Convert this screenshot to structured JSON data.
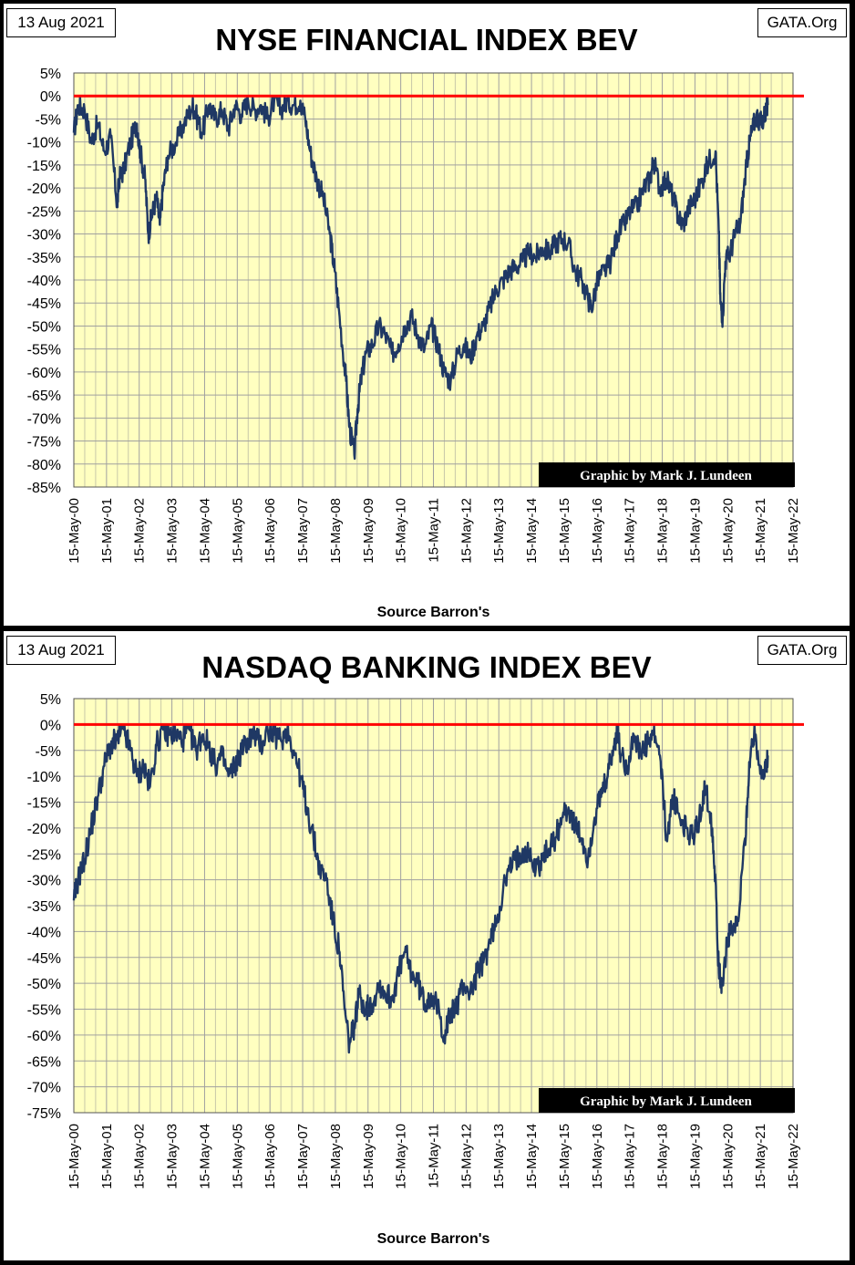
{
  "chart_data": [
    {
      "type": "line",
      "title": "NYSE FINANCIAL INDEX BEV",
      "date_stamp": "13 Aug 2021",
      "site_label": "GATA.Org",
      "credit": "Graphic by Mark J. Lundeen",
      "xlabel": "Source Barron's",
      "ylabel": "",
      "ylim": [
        -85,
        5
      ],
      "y_ticks": [
        "5%",
        "0%",
        "-5%",
        "-10%",
        "-15%",
        "-20%",
        "-25%",
        "-30%",
        "-35%",
        "-40%",
        "-45%",
        "-50%",
        "-55%",
        "-60%",
        "-65%",
        "-70%",
        "-75%",
        "-80%",
        "-85%"
      ],
      "x_ticks": [
        "15-May-00",
        "15-May-01",
        "15-May-02",
        "15-May-03",
        "15-May-04",
        "15-May-05",
        "15-May-06",
        "15-May-07",
        "15-May-08",
        "15-May-09",
        "15-May-10",
        "15-May-11",
        "15-May-12",
        "15-May-13",
        "15-May-14",
        "15-May-15",
        "15-May-16",
        "15-May-17",
        "15-May-18",
        "15-May-19",
        "15-May-20",
        "15-May-21",
        "15-May-22"
      ],
      "grid": true,
      "reference_line": 0,
      "colors": {
        "line": "#1f3864",
        "reference": "#ff0000",
        "plot_bg": "#ffffc0",
        "grid": "#a0a0a0"
      },
      "series": [
        {
          "x": [
            2000.37,
            2000.5,
            2000.7,
            2000.9,
            2001.1,
            2001.3,
            2001.5,
            2001.7,
            2001.75,
            2001.9,
            2002.1,
            2002.3,
            2002.4,
            2002.55,
            2002.65,
            2002.75,
            2002.9,
            2003.0,
            2003.1,
            2003.25,
            2003.5,
            2003.75,
            2004.0,
            2004.1,
            2004.3,
            2004.5,
            2004.7,
            2004.9,
            2005.1,
            2005.3,
            2005.5,
            2005.7,
            2005.9,
            2006.1,
            2006.3,
            2006.5,
            2006.7,
            2006.9,
            2007.1,
            2007.3,
            2007.45,
            2007.6,
            2007.8,
            2008.0,
            2008.2,
            2008.35,
            2008.5,
            2008.7,
            2008.8,
            2008.95,
            2009.05,
            2009.15,
            2009.3,
            2009.5,
            2009.7,
            2009.9,
            2010.1,
            2010.3,
            2010.5,
            2010.7,
            2010.9,
            2011.1,
            2011.3,
            2011.5,
            2011.7,
            2011.9,
            2012.1,
            2012.3,
            2012.5,
            2012.7,
            2012.9,
            2013.1,
            2013.3,
            2013.5,
            2013.7,
            2013.9,
            2014.1,
            2014.3,
            2014.5,
            2014.7,
            2014.9,
            2015.1,
            2015.3,
            2015.5,
            2015.7,
            2015.9,
            2016.1,
            2016.2,
            2016.4,
            2016.6,
            2016.8,
            2017.0,
            2017.2,
            2017.4,
            2017.6,
            2017.8,
            2018.0,
            2018.1,
            2018.3,
            2018.5,
            2018.7,
            2018.85,
            2019.0,
            2019.2,
            2019.4,
            2019.6,
            2019.8,
            2020.0,
            2020.1,
            2020.15,
            2020.22,
            2020.3,
            2020.45,
            2020.6,
            2020.75,
            2020.9,
            2021.0,
            2021.1,
            2021.25,
            2021.4,
            2021.5,
            2021.6
          ],
          "values": [
            -8,
            -2,
            -3,
            -10,
            -6,
            -12,
            -9,
            -24,
            -18,
            -16,
            -10,
            -6,
            -12,
            -18,
            -30,
            -26,
            -22,
            -28,
            -20,
            -13,
            -10,
            -6,
            -2,
            -4,
            -8,
            -2,
            -5,
            -3,
            -7,
            -2,
            -4,
            -1,
            -3,
            -2,
            -5,
            -1,
            -3,
            -1,
            -2,
            -1,
            -5,
            -12,
            -18,
            -22,
            -30,
            -38,
            -48,
            -62,
            -72,
            -78,
            -68,
            -62,
            -56,
            -54,
            -50,
            -52,
            -56,
            -54,
            -50,
            -48,
            -52,
            -55,
            -50,
            -54,
            -60,
            -62,
            -56,
            -54,
            -57,
            -52,
            -50,
            -46,
            -42,
            -40,
            -38,
            -37,
            -36,
            -34,
            -35,
            -33,
            -34,
            -32,
            -31,
            -32,
            -38,
            -40,
            -44,
            -46,
            -40,
            -38,
            -36,
            -30,
            -28,
            -25,
            -24,
            -20,
            -18,
            -14,
            -20,
            -18,
            -22,
            -26,
            -28,
            -24,
            -22,
            -18,
            -14,
            -12,
            -30,
            -45,
            -48,
            -36,
            -34,
            -30,
            -28,
            -18,
            -12,
            -8,
            -4,
            -6,
            -4,
            -2
          ]
        }
      ]
    },
    {
      "type": "line",
      "title": "NASDAQ BANKING INDEX BEV",
      "date_stamp": "13 Aug 2021",
      "site_label": "GATA.Org",
      "credit": "Graphic by Mark J. Lundeen",
      "xlabel": "Source Barron's",
      "ylabel": "",
      "ylim": [
        -75,
        5
      ],
      "y_ticks": [
        "5%",
        "0%",
        "-5%",
        "-10%",
        "-15%",
        "-20%",
        "-25%",
        "-30%",
        "-35%",
        "-40%",
        "-45%",
        "-50%",
        "-55%",
        "-60%",
        "-65%",
        "-70%",
        "-75%"
      ],
      "x_ticks": [
        "15-May-00",
        "15-May-01",
        "15-May-02",
        "15-May-03",
        "15-May-04",
        "15-May-05",
        "15-May-06",
        "15-May-07",
        "15-May-08",
        "15-May-09",
        "15-May-10",
        "15-May-11",
        "15-May-12",
        "15-May-13",
        "15-May-14",
        "15-May-15",
        "15-May-16",
        "15-May-17",
        "15-May-18",
        "15-May-19",
        "15-May-20",
        "15-May-21",
        "15-May-22"
      ],
      "grid": true,
      "reference_line": 0,
      "colors": {
        "line": "#1f3864",
        "reference": "#ff0000",
        "plot_bg": "#ffffc0",
        "grid": "#a0a0a0"
      },
      "series": [
        {
          "x": [
            2000.37,
            2000.5,
            2000.7,
            2000.9,
            2001.1,
            2001.3,
            2001.5,
            2001.7,
            2001.9,
            2002.1,
            2002.3,
            2002.5,
            2002.7,
            2002.9,
            2003.1,
            2003.3,
            2003.5,
            2003.7,
            2003.9,
            2004.1,
            2004.3,
            2004.5,
            2004.7,
            2004.9,
            2005.1,
            2005.3,
            2005.5,
            2005.7,
            2005.9,
            2006.1,
            2006.3,
            2006.5,
            2006.7,
            2006.9,
            2007.1,
            2007.3,
            2007.5,
            2007.7,
            2007.9,
            2008.1,
            2008.3,
            2008.5,
            2008.65,
            2008.8,
            2008.95,
            2009.1,
            2009.3,
            2009.5,
            2009.7,
            2009.9,
            2010.1,
            2010.3,
            2010.5,
            2010.7,
            2010.9,
            2011.1,
            2011.3,
            2011.5,
            2011.7,
            2011.9,
            2012.1,
            2012.3,
            2012.5,
            2012.7,
            2012.9,
            2013.1,
            2013.3,
            2013.5,
            2013.7,
            2013.9,
            2014.1,
            2014.3,
            2014.5,
            2014.7,
            2014.9,
            2015.1,
            2015.3,
            2015.5,
            2015.7,
            2015.9,
            2016.1,
            2016.3,
            2016.5,
            2016.7,
            2016.9,
            2017.0,
            2017.1,
            2017.3,
            2017.5,
            2017.7,
            2017.9,
            2018.1,
            2018.3,
            2018.5,
            2018.7,
            2018.9,
            2019.1,
            2019.3,
            2019.5,
            2019.7,
            2019.9,
            2020.0,
            2020.1,
            2020.2,
            2020.35,
            2020.5,
            2020.7,
            2020.9,
            2021.0,
            2021.1,
            2021.2,
            2021.35,
            2021.5,
            2021.6
          ],
          "values": [
            -34,
            -30,
            -26,
            -20,
            -14,
            -8,
            -4,
            -3,
            -1,
            -5,
            -10,
            -8,
            -12,
            -4,
            -1,
            -2,
            -2,
            -3,
            -1,
            -5,
            -2,
            -4,
            -8,
            -6,
            -10,
            -8,
            -5,
            -3,
            -2,
            -4,
            -1,
            -2,
            -3,
            -1,
            -5,
            -10,
            -16,
            -22,
            -28,
            -30,
            -38,
            -44,
            -55,
            -62,
            -58,
            -52,
            -55,
            -54,
            -50,
            -52,
            -53,
            -48,
            -44,
            -48,
            -50,
            -54,
            -52,
            -55,
            -60,
            -56,
            -54,
            -50,
            -52,
            -48,
            -46,
            -42,
            -38,
            -32,
            -28,
            -26,
            -24,
            -25,
            -28,
            -26,
            -24,
            -22,
            -18,
            -16,
            -20,
            -22,
            -26,
            -18,
            -14,
            -10,
            -4,
            -1,
            -6,
            -8,
            -2,
            -6,
            -4,
            -2,
            -6,
            -22,
            -14,
            -18,
            -20,
            -22,
            -18,
            -12,
            -20,
            -30,
            -48,
            -50,
            -42,
            -40,
            -38,
            -22,
            -12,
            -4,
            -1,
            -8,
            -10,
            -6
          ]
        }
      ]
    }
  ]
}
